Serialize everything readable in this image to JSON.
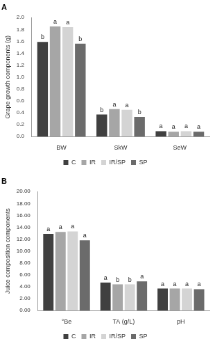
{
  "chart_data": [
    {
      "type": "bar",
      "title": "A",
      "y_label": "Grape growth components (g)",
      "categories": [
        "BW",
        "SkW",
        "SeW"
      ],
      "series": [
        {
          "name": "C",
          "color": "#404040",
          "values": [
            1.59,
            0.37,
            0.09
          ],
          "letters": [
            "b",
            "b",
            "a"
          ]
        },
        {
          "name": "IR",
          "color": "#a6a6a6",
          "values": [
            1.85,
            0.46,
            0.08
          ],
          "letters": [
            "a",
            "a",
            "a"
          ]
        },
        {
          "name": "IR/SP",
          "color": "#d4d4d4",
          "values": [
            1.84,
            0.45,
            0.09
          ],
          "letters": [
            "a",
            "a",
            "a"
          ]
        },
        {
          "name": "SP",
          "color": "#6b6b6b",
          "values": [
            1.56,
            0.33,
            0.08
          ],
          "letters": [
            "b",
            "b",
            "a"
          ]
        }
      ],
      "ylim": [
        0,
        2
      ],
      "yticks": [
        {
          "value": 0,
          "label": "0.0"
        },
        {
          "value": 0.2,
          "label": "0.2"
        },
        {
          "value": 0.4,
          "label": "0.4"
        },
        {
          "value": 0.6,
          "label": "0.6"
        },
        {
          "value": 0.8,
          "label": "0.8"
        },
        {
          "value": 1,
          "label": "1.0"
        },
        {
          "value": 1.2,
          "label": "1.2"
        },
        {
          "value": 1.4,
          "label": "1.4"
        },
        {
          "value": 1.6,
          "label": "1.6"
        },
        {
          "value": 1.8,
          "label": "1.8"
        },
        {
          "value": 2,
          "label": "2.0"
        }
      ],
      "grid": false,
      "legend": "bottom"
    },
    {
      "type": "bar",
      "title": "B",
      "y_label": "Juice composition components",
      "categories": [
        "°Be",
        "TA (g/L)",
        "pH"
      ],
      "series": [
        {
          "name": "C",
          "color": "#404040",
          "values": [
            12.9,
            4.7,
            3.7
          ],
          "letters": [
            "a",
            "a",
            "a"
          ]
        },
        {
          "name": "IR",
          "color": "#a6a6a6",
          "values": [
            13.2,
            4.4,
            3.7
          ],
          "letters": [
            "a",
            "b",
            "a"
          ]
        },
        {
          "name": "IR/SP",
          "color": "#d4d4d4",
          "values": [
            13.3,
            4.4,
            3.7
          ],
          "letters": [
            "a",
            "b",
            "a"
          ]
        },
        {
          "name": "SP",
          "color": "#6b6b6b",
          "values": [
            11.8,
            4.9,
            3.6
          ],
          "letters": [
            "a",
            "a",
            "a"
          ]
        }
      ],
      "ylim": [
        0,
        20
      ],
      "yticks": [
        {
          "value": 0,
          "label": "0.00"
        },
        {
          "value": 2,
          "label": "2.00"
        },
        {
          "value": 4,
          "label": "4.00"
        },
        {
          "value": 6,
          "label": "6.00"
        },
        {
          "value": 8,
          "label": "8.00"
        },
        {
          "value": 10,
          "label": "10.00"
        },
        {
          "value": 12,
          "label": "12.00"
        },
        {
          "value": 14,
          "label": "14.00"
        },
        {
          "value": 16,
          "label": "16.00"
        },
        {
          "value": 18,
          "label": "18.00"
        },
        {
          "value": 20,
          "label": "20.00"
        }
      ],
      "grid": false,
      "legend": "bottom"
    }
  ]
}
